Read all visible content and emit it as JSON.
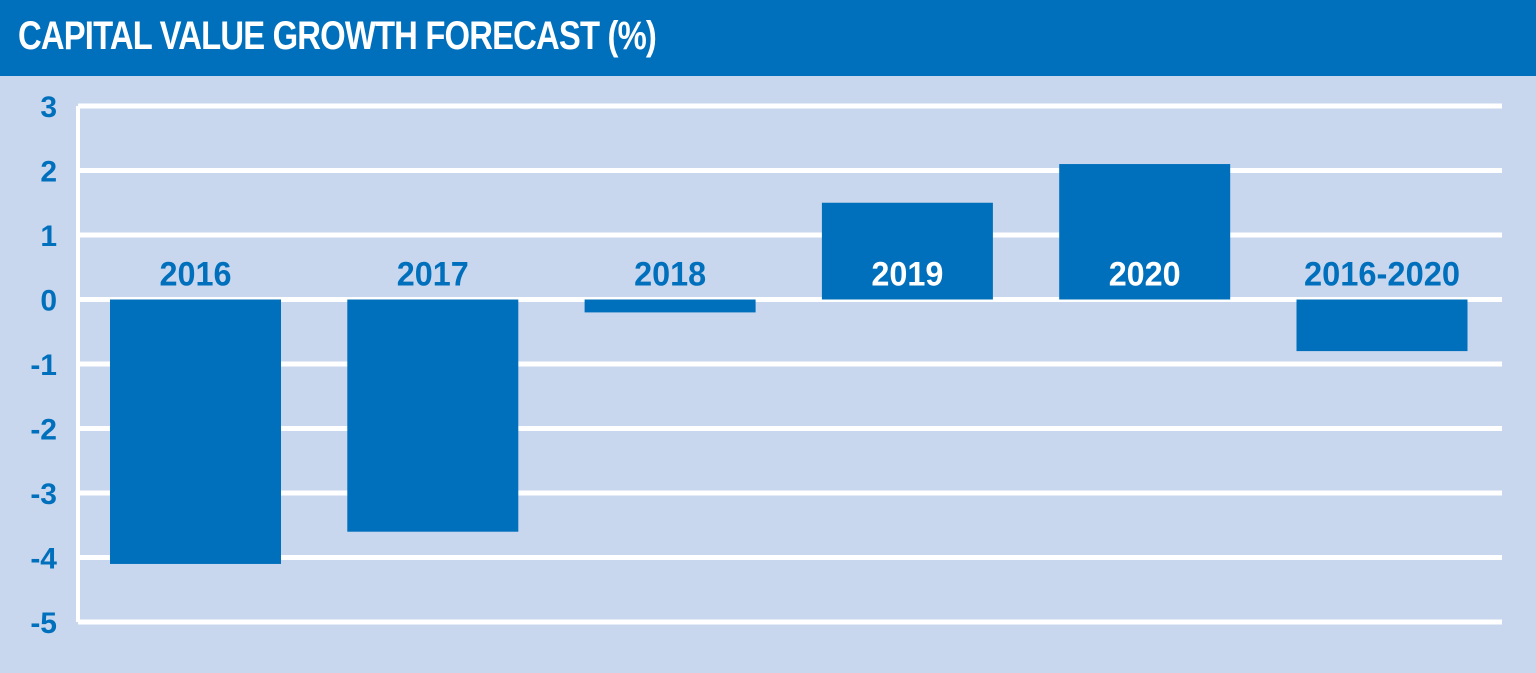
{
  "chart_data": {
    "type": "bar",
    "title": "CAPITAL VALUE GROWTH FORECAST (%)",
    "categories": [
      "2016",
      "2017",
      "2018",
      "2019",
      "2020",
      "2016-2020"
    ],
    "values": [
      -4.1,
      -3.6,
      -0.2,
      1.5,
      2.1,
      -0.8
    ],
    "ylim": [
      -5,
      3
    ],
    "yticks": [
      "3",
      "2",
      "1",
      "0",
      "-1",
      "-2",
      "-3",
      "-4",
      "-5"
    ],
    "grid": true,
    "colors": {
      "bar": "#0070bc",
      "header": "#0070bc",
      "background": "#c8d6ee",
      "grid": "#ffffff",
      "label_on_bar": "#ffffff",
      "label_off_bar": "#0070bc"
    }
  }
}
